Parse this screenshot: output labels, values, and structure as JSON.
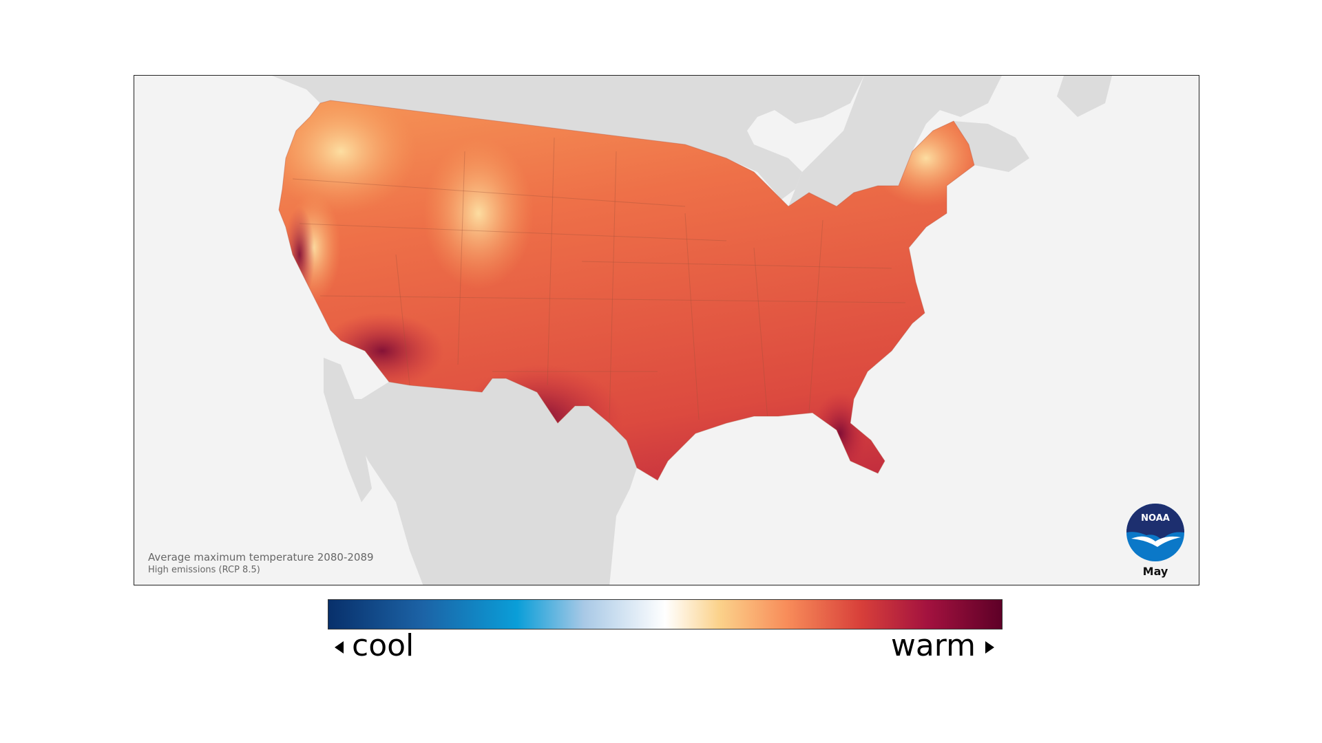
{
  "map": {
    "caption_title": "Average maximum temperature 2080-2089",
    "caption_scenario": "High emissions (RCP 8.5)",
    "month": "May",
    "logo_text": "NOAA"
  },
  "legend": {
    "low_label": "cool",
    "high_label": "warm",
    "colors": [
      "#08306b",
      "#1c63a6",
      "#0a9ed8",
      "#a9c9e6",
      "#ffffff",
      "#fbd28b",
      "#f88d5a",
      "#d8403a",
      "#a3123f",
      "#5e0027"
    ]
  },
  "colors": {
    "land_outside": "#dcdcdc",
    "water": "#f3f3f3",
    "us_fill_hot": "#c8283f",
    "us_fill_warm": "#ec6a42",
    "us_fill_mild": "#f8a25c"
  }
}
